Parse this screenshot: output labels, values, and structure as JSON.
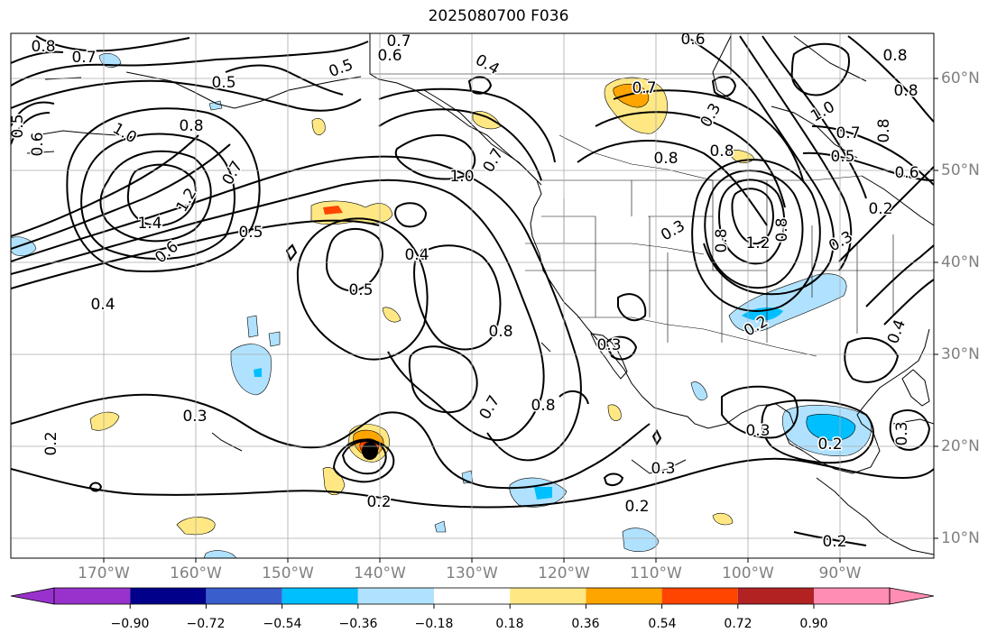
{
  "title": "2025080700 F036",
  "lat_labels": [
    "60°N",
    "50°N",
    "40°N",
    "30°N",
    "20°N",
    "10°N"
  ],
  "lon_labels": [
    "170°W",
    "160°W",
    "150°W",
    "140°W",
    "130°W",
    "120°W",
    "110°W",
    "100°W",
    "90°W"
  ],
  "colorbar": {
    "colors": [
      "#9932cc",
      "#00008b",
      "#3a5fcd",
      "#00bfff",
      "#b0e2ff",
      "#ffffff",
      "#ffe884",
      "#ffa500",
      "#ff4500",
      "#b22222",
      "#ff8db4"
    ],
    "tick_labels": [
      "−0.90",
      "−0.72",
      "−0.54",
      "−0.36",
      "−0.18",
      "0.18",
      "0.36",
      "0.54",
      "0.72",
      "0.90"
    ]
  },
  "contour_labels": [
    "0.8",
    "0.7",
    "0.7",
    "0.6",
    "0.6",
    "0.8",
    "0.5",
    "0.5",
    "0.5",
    "0.6",
    "0.8",
    "1.0",
    "0.7",
    "1.4",
    "1.2",
    "0.6",
    "0.5",
    "0.4",
    "0.4",
    "1.0",
    "0.8",
    "0.5",
    "0.8",
    "0.7",
    "0.3",
    "0.2",
    "0.2",
    "0.2",
    "0.3",
    "0.2",
    "0.3",
    "0.7",
    "0.8",
    "0.3",
    "0.7",
    "0.8",
    "0.8",
    "0.3",
    "1.2",
    "0.8",
    "0.3",
    "0.2",
    "0.3",
    "0.2",
    "0.3",
    "0.2",
    "0.8",
    "1.0",
    "0.7",
    "0.5",
    "0.6",
    "0.8",
    "0.4",
    "0.4",
    "0.8"
  ]
}
